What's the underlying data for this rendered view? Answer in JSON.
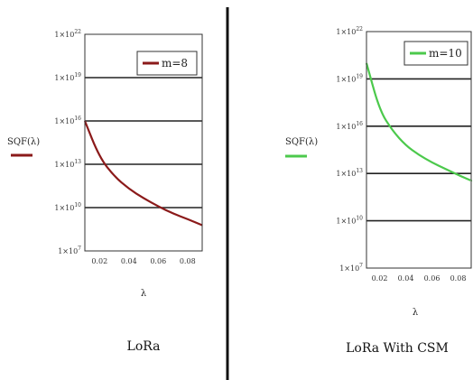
{
  "colors": {
    "divider": "#111111",
    "grid": "#222222",
    "frame": "#333333"
  },
  "chart_data": [
    {
      "type": "line",
      "caption": "LoRa",
      "xlabel": "λ",
      "ylabel": "SQF(λ)",
      "y_scale": "log",
      "xlim": [
        0.01,
        0.09
      ],
      "ylim": [
        10000000.0,
        1e+22
      ],
      "x_ticks": [
        0.02,
        0.04,
        0.06,
        0.08
      ],
      "x_tick_labels": [
        "0.02",
        "0.04",
        "0.06",
        "0.08"
      ],
      "y_ticks": [
        10000000.0,
        10000000000.0,
        10000000000000.0,
        1e+16,
        1e+19,
        1e+22
      ],
      "y_tick_labels": [
        {
          "base": "1×10",
          "exp": "7"
        },
        {
          "base": "1×10",
          "exp": "10"
        },
        {
          "base": "1×10",
          "exp": "13"
        },
        {
          "base": "1×10",
          "exp": "16"
        },
        {
          "base": "1×10",
          "exp": "19"
        },
        {
          "base": "1×10",
          "exp": "22"
        }
      ],
      "grid": "horizontal",
      "legend_position": "top-right",
      "series": [
        {
          "name": "m=8",
          "color": "#8b1a1a",
          "x": [
            0.01,
            0.02,
            0.03,
            0.04,
            0.05,
            0.06,
            0.07,
            0.08,
            0.09
          ],
          "y": [
            1e+16,
            30000000000000.0,
            1500000000000.0,
            200000000000.0,
            45000000000.0,
            12000000000.0,
            4000000000.0,
            1600000000.0,
            600000000.0
          ]
        }
      ]
    },
    {
      "type": "line",
      "caption": "LoRa With CSM",
      "xlabel": "λ",
      "ylabel": "SQF(λ)",
      "y_scale": "log",
      "xlim": [
        0.01,
        0.09
      ],
      "ylim": [
        10000000.0,
        1e+22
      ],
      "x_ticks": [
        0.02,
        0.04,
        0.06,
        0.08
      ],
      "x_tick_labels": [
        "0.02",
        "0.04",
        "0.06",
        "0.08"
      ],
      "y_ticks": [
        10000000.0,
        10000000000.0,
        10000000000000.0,
        1e+16,
        1e+19,
        1e+22
      ],
      "y_tick_labels": [
        {
          "base": "1×10",
          "exp": "7"
        },
        {
          "base": "1×10",
          "exp": "10"
        },
        {
          "base": "1×10",
          "exp": "13"
        },
        {
          "base": "1×10",
          "exp": "16"
        },
        {
          "base": "1×10",
          "exp": "19"
        },
        {
          "base": "1×10",
          "exp": "22"
        }
      ],
      "grid": "horizontal",
      "legend_position": "top-right",
      "series": [
        {
          "name": "m=10",
          "color": "#4cc94c",
          "x": [
            0.01,
            0.02,
            0.03,
            0.04,
            0.05,
            0.06,
            0.07,
            0.08,
            0.09
          ],
          "y": [
            1e+20,
            1e+17,
            5000000000000000.0,
            600000000000000.0,
            150000000000000.0,
            50000000000000.0,
            20000000000000.0,
            8000000000000.0,
            3500000000000.0
          ]
        }
      ]
    }
  ]
}
